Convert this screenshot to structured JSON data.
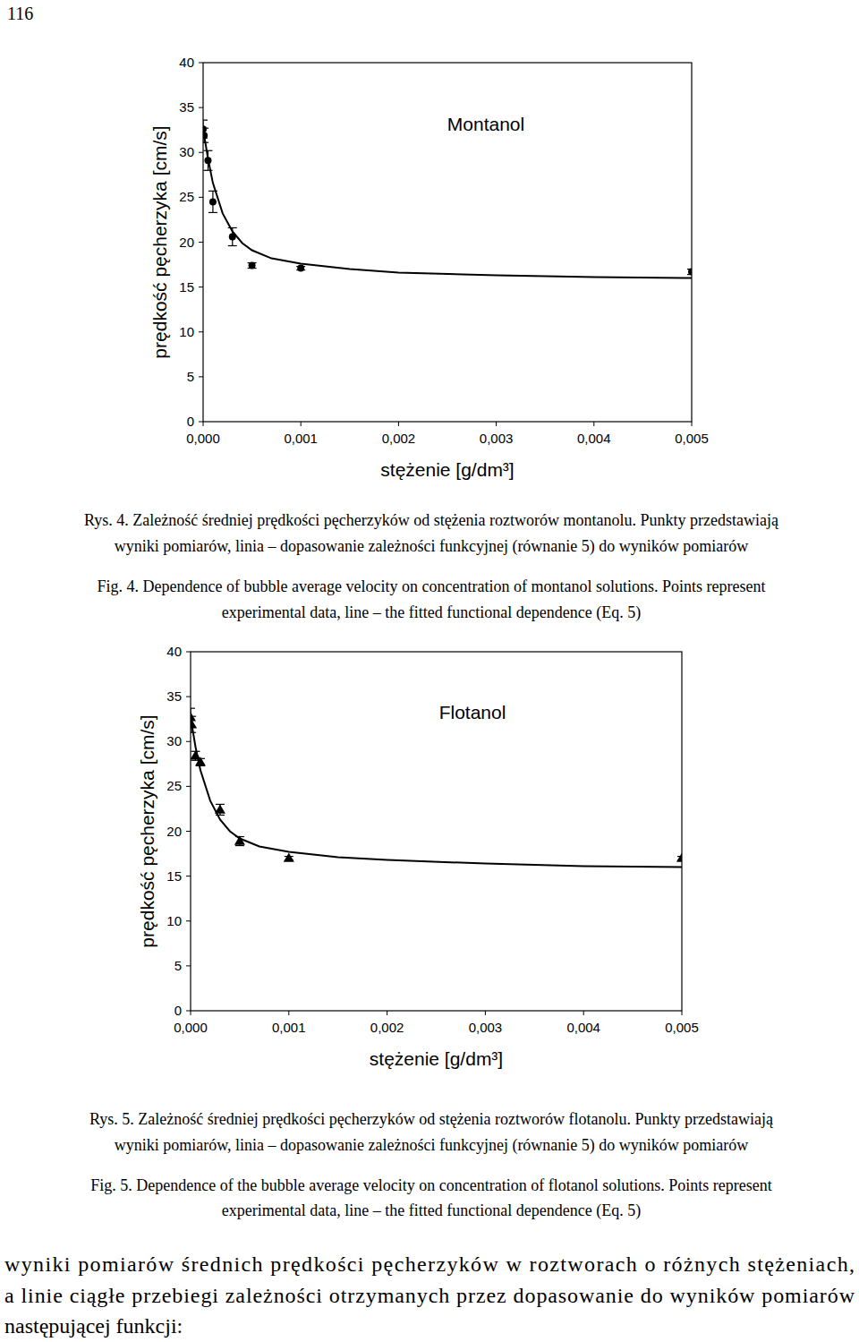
{
  "page_number": "116",
  "chart_data": [
    {
      "type": "scatter",
      "title": "Montanol",
      "x_label": "stężenie  [g/dm³]",
      "y_label": "prędkość pęcherzyka  [cm/s]",
      "xlim": [
        0,
        0.005
      ],
      "ylim": [
        0,
        40
      ],
      "xticks": [
        {
          "value": 0,
          "label": "0,000"
        },
        {
          "value": 0.001,
          "label": "0,001"
        },
        {
          "value": 0.002,
          "label": "0,002"
        },
        {
          "value": 0.003,
          "label": "0,003"
        },
        {
          "value": 0.004,
          "label": "0,004"
        },
        {
          "value": 0.005,
          "label": "0,005"
        }
      ],
      "yticks": [
        0,
        5,
        10,
        15,
        20,
        25,
        30,
        35,
        40
      ],
      "grid": false,
      "series": [
        {
          "type": "scatter",
          "marker": "circle",
          "color": "#000000",
          "x": [
            0,
            1e-05,
            5e-05,
            0.0001,
            0.0003,
            0.0005,
            0.001,
            0.005
          ],
          "values": [
            32.6,
            31.9,
            29.1,
            24.5,
            20.6,
            17.4,
            17.1,
            16.7
          ],
          "errors": [
            1.0,
            0.8,
            1.1,
            1.2,
            1.0,
            0.3,
            0.2,
            0.3
          ]
        },
        {
          "type": "line",
          "line_style": "solid",
          "color": "#000000",
          "x": [
            0,
            5e-05,
            0.0001,
            0.0002,
            0.0003,
            0.0004,
            0.0005,
            0.0007,
            0.001,
            0.0015,
            0.002,
            0.003,
            0.004,
            0.005
          ],
          "values": [
            32.6,
            29.3,
            26.6,
            23.2,
            21.2,
            19.9,
            19.1,
            18.2,
            17.6,
            17.0,
            16.6,
            16.3,
            16.1,
            16.0
          ]
        }
      ]
    },
    {
      "type": "scatter",
      "title": "Flotanol",
      "x_label": "stężenie  [g/dm³]",
      "y_label": "prędkość pęcherzyka  [cm/s]",
      "xlim": [
        0,
        0.005
      ],
      "ylim": [
        0,
        40
      ],
      "xticks": [
        {
          "value": 0,
          "label": "0,000"
        },
        {
          "value": 0.001,
          "label": "0,001"
        },
        {
          "value": 0.002,
          "label": "0,002"
        },
        {
          "value": 0.003,
          "label": "0,003"
        },
        {
          "value": 0.004,
          "label": "0,004"
        },
        {
          "value": 0.005,
          "label": "0,005"
        }
      ],
      "yticks": [
        0,
        5,
        10,
        15,
        20,
        25,
        30,
        35,
        40
      ],
      "grid": false,
      "series": [
        {
          "type": "scatter",
          "marker": "triangle",
          "color": "#000000",
          "x": [
            0,
            1e-05,
            5e-05,
            0.0001,
            0.0003,
            0.0005,
            0.001,
            0.005
          ],
          "values": [
            32.7,
            31.9,
            28.4,
            27.7,
            22.4,
            18.9,
            17.0,
            17.0
          ],
          "errors": [
            1.0,
            0.9,
            0.5,
            0.4,
            0.6,
            0.5,
            0.2,
            0.2
          ]
        },
        {
          "type": "line",
          "line_style": "solid",
          "color": "#000000",
          "x": [
            0,
            5e-05,
            0.0001,
            0.0002,
            0.0003,
            0.0004,
            0.0005,
            0.0007,
            0.001,
            0.0015,
            0.002,
            0.003,
            0.004,
            0.005
          ],
          "values": [
            32.7,
            29.4,
            26.8,
            23.4,
            21.3,
            20.0,
            19.2,
            18.3,
            17.7,
            17.1,
            16.8,
            16.4,
            16.1,
            16.0
          ]
        }
      ]
    }
  ],
  "captions": [
    {
      "pl": [
        "Rys. 4. Zależność średniej prędkości pęcherzyków od stężenia roztworów montanolu. Punkty przedstawiają",
        "wyniki pomiarów, linia – dopasowanie zależności funkcyjnej (równanie 5) do wyników pomiarów"
      ],
      "en": [
        "Fig. 4. Dependence of bubble average velocity on concentration of montanol solutions. Points represent",
        "experimental data, line – the fitted functional dependence (Eq. 5)"
      ]
    },
    {
      "pl": [
        "Rys. 5. Zależność średniej prędkości pęcherzyków od stężenia roztworów flotanolu. Punkty przedstawiają",
        "wyniki pomiarów, linia – dopasowanie zależności funkcyjnej (równanie 5) do wyników pomiarów"
      ],
      "en": [
        "Fig. 5. Dependence of the bubble average velocity on concentration of flotanol solutions. Points represent",
        "experimental data, line – the fitted functional dependence (Eq. 5)"
      ]
    }
  ],
  "body_text": [
    "wyniki pomiarów średnich prędkości pęcherzyków w roztworach o różnych stężeniach,",
    "a linie ciągłe przebiegi zależności otrzymanych przez dopasowanie do wyników pomiarów",
    "następującej funkcji:"
  ]
}
